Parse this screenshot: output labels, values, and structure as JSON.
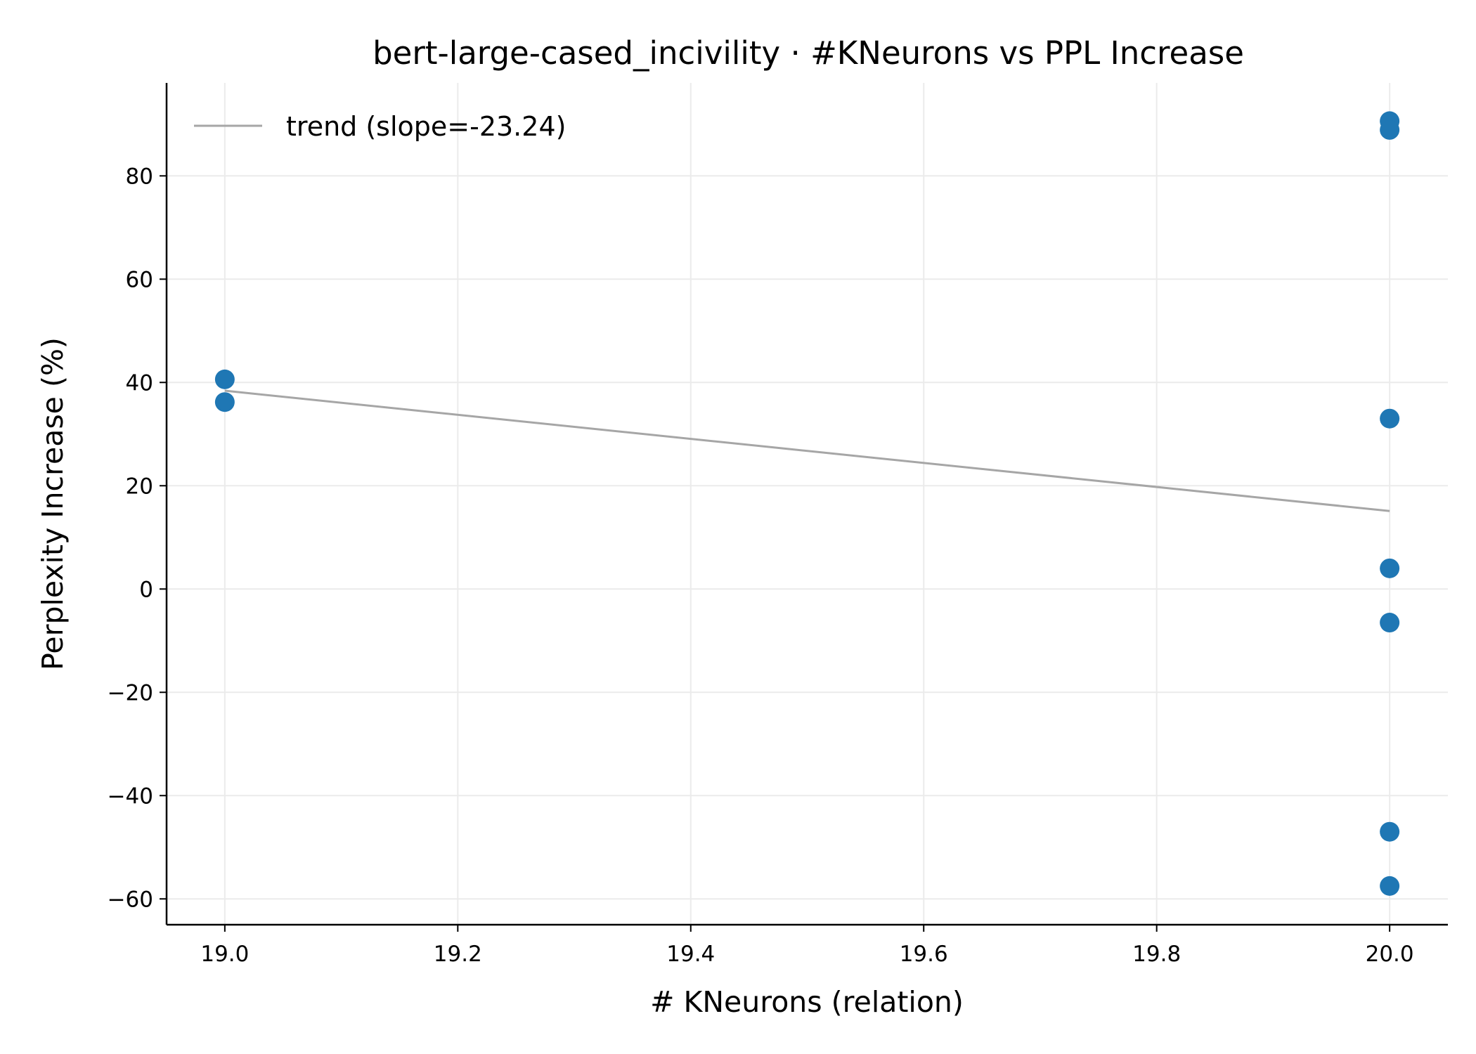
{
  "chart_data": {
    "type": "scatter",
    "title": "bert-large-cased_incivility · #KNeurons vs PPL Increase",
    "xlabel": "# KNeurons (relation)",
    "ylabel": "Perplexity Increase (%)",
    "xlim": [
      18.95,
      20.05
    ],
    "ylim": [
      -65,
      98
    ],
    "x_ticks": [
      19.0,
      19.2,
      19.4,
      19.6,
      19.8,
      20.0
    ],
    "x_tick_labels": [
      "19.0",
      "19.2",
      "19.4",
      "19.6",
      "19.8",
      "20.0"
    ],
    "y_ticks": [
      -60,
      -40,
      -20,
      0,
      20,
      40,
      60,
      80
    ],
    "y_tick_labels": [
      "−60",
      "−40",
      "−20",
      "0",
      "20",
      "40",
      "60",
      "80"
    ],
    "grid": true,
    "legend_position": "top-left",
    "point_color": "#1f77b4",
    "trend_color": "#a6a6a6",
    "points": [
      {
        "x": 19.0,
        "y": 40.6
      },
      {
        "x": 19.0,
        "y": 36.2
      },
      {
        "x": 20.0,
        "y": 90.6
      },
      {
        "x": 20.0,
        "y": 88.9
      },
      {
        "x": 20.0,
        "y": 33.0
      },
      {
        "x": 20.0,
        "y": 4.0
      },
      {
        "x": 20.0,
        "y": -6.5
      },
      {
        "x": 20.0,
        "y": -47.0
      },
      {
        "x": 20.0,
        "y": -57.5
      }
    ],
    "trend": {
      "label": "trend (slope=-23.24)",
      "x": [
        19.0,
        20.0
      ],
      "y": [
        38.4,
        15.1
      ]
    }
  }
}
